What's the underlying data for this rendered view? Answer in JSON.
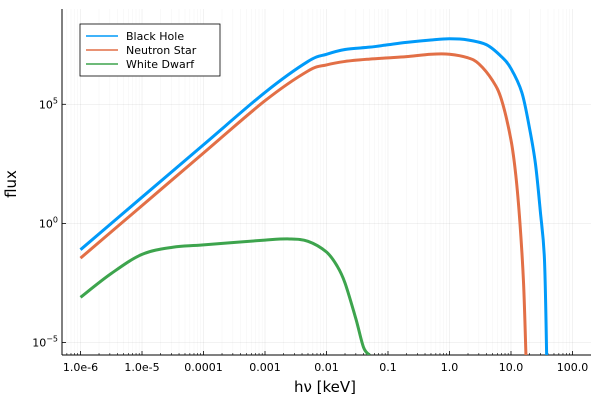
{
  "chart_data": {
    "type": "line",
    "title": "",
    "xlabel": "hν [keV]",
    "ylabel": "flux",
    "xscale": "log",
    "yscale": "log",
    "xlim": [
      5e-07,
      200
    ],
    "ylim": [
      3e-06,
      1000000000
    ],
    "grid": true,
    "legend_position": "top-left",
    "x_ticks": [
      {
        "value": 1e-06,
        "label": "1.0e-6"
      },
      {
        "value": 1e-05,
        "label": "1.0e-5"
      },
      {
        "value": 0.0001,
        "label": "0.0001"
      },
      {
        "value": 0.001,
        "label": "0.001"
      },
      {
        "value": 0.01,
        "label": "0.01"
      },
      {
        "value": 0.1,
        "label": "0.1"
      },
      {
        "value": 1,
        "label": "1.0"
      },
      {
        "value": 10,
        "label": "10.0"
      },
      {
        "value": 100,
        "label": "100.0"
      }
    ],
    "y_ticks": [
      {
        "value": 1e-05,
        "base": "10",
        "exp": "−5"
      },
      {
        "value": 1,
        "base": "10",
        "exp": "0"
      },
      {
        "value": 100000,
        "base": "10",
        "exp": "5"
      }
    ],
    "series": [
      {
        "name": "Black Hole",
        "color": "#009af9",
        "x": [
          1e-06,
          1e-05,
          0.0001,
          0.001,
          0.005,
          0.01,
          0.02,
          0.05,
          0.1,
          0.2,
          0.5,
          1,
          2,
          4,
          7,
          10,
          15,
          20,
          25,
          30,
          35,
          38
        ],
        "y": [
          0.079,
          12.6,
          2000,
          316000,
          6300000,
          12600000,
          20000000,
          25000000,
          31600000,
          39800000,
          50100000,
          56200000,
          50100000,
          31600000,
          10000000,
          3160000,
          316000,
          10000,
          316,
          3.2,
          0.0316,
          3e-06
        ]
      },
      {
        "name": "Neutron Star",
        "color": "#e26f46",
        "x": [
          1e-06,
          1e-05,
          0.0001,
          0.001,
          0.005,
          0.01,
          0.02,
          0.05,
          0.1,
          0.2,
          0.5,
          1,
          2,
          3,
          5,
          7,
          10,
          12,
          14,
          16,
          17.5
        ],
        "y": [
          0.035,
          5.6,
          900,
          141000,
          2500000,
          4500000,
          6300000,
          7900000,
          8900000,
          10000000,
          12600000,
          12600000,
          8900000,
          5000000,
          1000000,
          158000,
          3160,
          100,
          1,
          0.0032,
          3e-06
        ]
      },
      {
        "name": "White Dwarf",
        "color": "#3da44d",
        "x": [
          1e-06,
          3.16e-06,
          1e-05,
          3.16e-05,
          0.0001,
          0.001,
          0.0025,
          0.005,
          0.01,
          0.015,
          0.02,
          0.03,
          0.04,
          0.05
        ],
        "y": [
          0.00079,
          0.0079,
          0.05,
          0.1,
          0.126,
          0.2,
          0.223,
          0.178,
          0.063,
          0.0158,
          0.00316,
          0.0001,
          6.3e-06,
          3e-06
        ]
      }
    ]
  }
}
